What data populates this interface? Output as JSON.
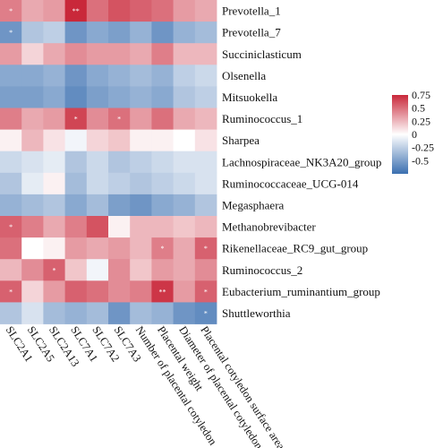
{
  "chart_data": {
    "type": "heatmap",
    "title": "",
    "rows": [
      "Prevotella_1",
      "Prevotella_7",
      "Succiniclasticum",
      "Olsenella",
      "Mitsuokella",
      "Ruminococcus_1",
      "Sharpea",
      "Lachnospiraceae_NK3A20_group",
      "Ruminococcaceae_UCG-014",
      "Megasphaera",
      "Methanobrevibacter",
      "Rikenellaceae_RC9_gut_group",
      "Ruminococcus_2",
      "Eubacterium_ruminantium_group",
      "Shuttleworthia"
    ],
    "columns": [
      "SLC2A1",
      "SLC2A5",
      "SLC2A13",
      "SLC7A1",
      "SLC7A2",
      "SLC7A3",
      "Number of placental cotyledon",
      "Placental weight",
      "Diameter of placental cotyledon",
      "Placental cotyledon surface area"
    ],
    "values": [
      [
        0.45,
        0.3,
        0.35,
        0.75,
        0.5,
        0.6,
        0.55,
        0.5,
        0.35,
        0.3
      ],
      [
        -0.55,
        -0.3,
        -0.25,
        -0.55,
        -0.45,
        -0.5,
        -0.4,
        -0.55,
        -0.4,
        -0.35
      ],
      [
        0.35,
        0.15,
        0.3,
        0.4,
        0.35,
        0.35,
        0.3,
        0.45,
        0.25,
        0.25
      ],
      [
        -0.45,
        -0.45,
        -0.4,
        -0.55,
        -0.45,
        -0.4,
        -0.35,
        -0.4,
        -0.25,
        -0.2
      ],
      [
        -0.5,
        -0.5,
        -0.45,
        -0.6,
        -0.5,
        -0.45,
        -0.4,
        -0.45,
        -0.3,
        -0.25
      ],
      [
        0.45,
        0.3,
        0.35,
        0.65,
        0.4,
        0.5,
        0.35,
        0.5,
        0.3,
        0.25
      ],
      [
        0.05,
        0.25,
        0.1,
        -0.05,
        0.15,
        0.2,
        0.05,
        0.05,
        0.0,
        0.1
      ],
      [
        -0.2,
        -0.15,
        -0.1,
        -0.3,
        -0.2,
        -0.3,
        -0.25,
        -0.2,
        -0.15,
        -0.15
      ],
      [
        -0.3,
        -0.1,
        0.05,
        -0.35,
        -0.2,
        -0.25,
        -0.3,
        -0.25,
        -0.2,
        -0.15
      ],
      [
        -0.4,
        -0.35,
        -0.3,
        -0.45,
        -0.35,
        -0.5,
        -0.55,
        -0.45,
        -0.4,
        -0.3
      ],
      [
        0.55,
        0.45,
        0.3,
        0.45,
        0.6,
        0.05,
        0.25,
        0.25,
        0.2,
        0.25
      ],
      [
        0.5,
        0.0,
        0.05,
        0.35,
        0.3,
        0.35,
        0.25,
        0.45,
        0.3,
        0.55
      ],
      [
        0.25,
        0.4,
        0.55,
        0.2,
        -0.05,
        0.4,
        0.2,
        0.35,
        0.3,
        0.4
      ],
      [
        0.55,
        0.15,
        0.35,
        0.55,
        0.5,
        0.4,
        0.45,
        0.7,
        0.35,
        0.55
      ],
      [
        -0.3,
        -0.15,
        -0.35,
        -0.4,
        -0.35,
        -0.55,
        -0.35,
        -0.4,
        -0.55,
        -0.6
      ]
    ],
    "significance": [
      [
        "*",
        "",
        "",
        "**",
        "",
        "",
        "",
        "",
        "",
        ""
      ],
      [
        "*",
        "",
        "",
        "",
        "",
        "",
        "",
        "",
        "",
        ""
      ],
      [
        "",
        "",
        "",
        "",
        "",
        "",
        "",
        "",
        "",
        ""
      ],
      [
        "",
        "",
        "",
        "",
        "",
        "",
        "",
        "",
        "",
        ""
      ],
      [
        "",
        "",
        "",
        "",
        "",
        "",
        "",
        "",
        "",
        ""
      ],
      [
        "",
        "",
        "",
        "*",
        "",
        "*",
        "",
        "",
        "",
        ""
      ],
      [
        "",
        "",
        "",
        "",
        "",
        "",
        "",
        "",
        "",
        ""
      ],
      [
        "",
        "",
        "",
        "",
        "",
        "",
        "",
        "",
        "",
        ""
      ],
      [
        "",
        "",
        "",
        "",
        "",
        "",
        "",
        "",
        "",
        ""
      ],
      [
        "",
        "",
        "",
        "",
        "",
        "",
        "",
        "",
        "",
        ""
      ],
      [
        "*",
        "",
        "",
        "",
        "",
        "",
        "",
        "",
        "",
        ""
      ],
      [
        "",
        "",
        "",
        "",
        "",
        "",
        "",
        "*",
        "",
        "*"
      ],
      [
        "",
        "",
        "*",
        "",
        "",
        "",
        "",
        "",
        "",
        ""
      ],
      [
        "*",
        "",
        "",
        "",
        "",
        "",
        "",
        "**",
        "",
        "*"
      ],
      [
        "",
        "",
        "",
        "",
        "",
        "",
        "",
        "",
        "",
        "*"
      ]
    ],
    "colorbar": {
      "range": [
        -0.75,
        0.75
      ],
      "ticks": [
        0.75,
        0.5,
        0.25,
        0,
        -0.25,
        -0.5
      ],
      "tick_labels": [
        "0.75",
        "0.5",
        "0.25",
        "0",
        "-0.25",
        "-0.5"
      ],
      "low_color": "#3b6fb0",
      "mid_color": "#ffffff",
      "high_color": "#c9283a"
    },
    "legend_position": "right"
  }
}
